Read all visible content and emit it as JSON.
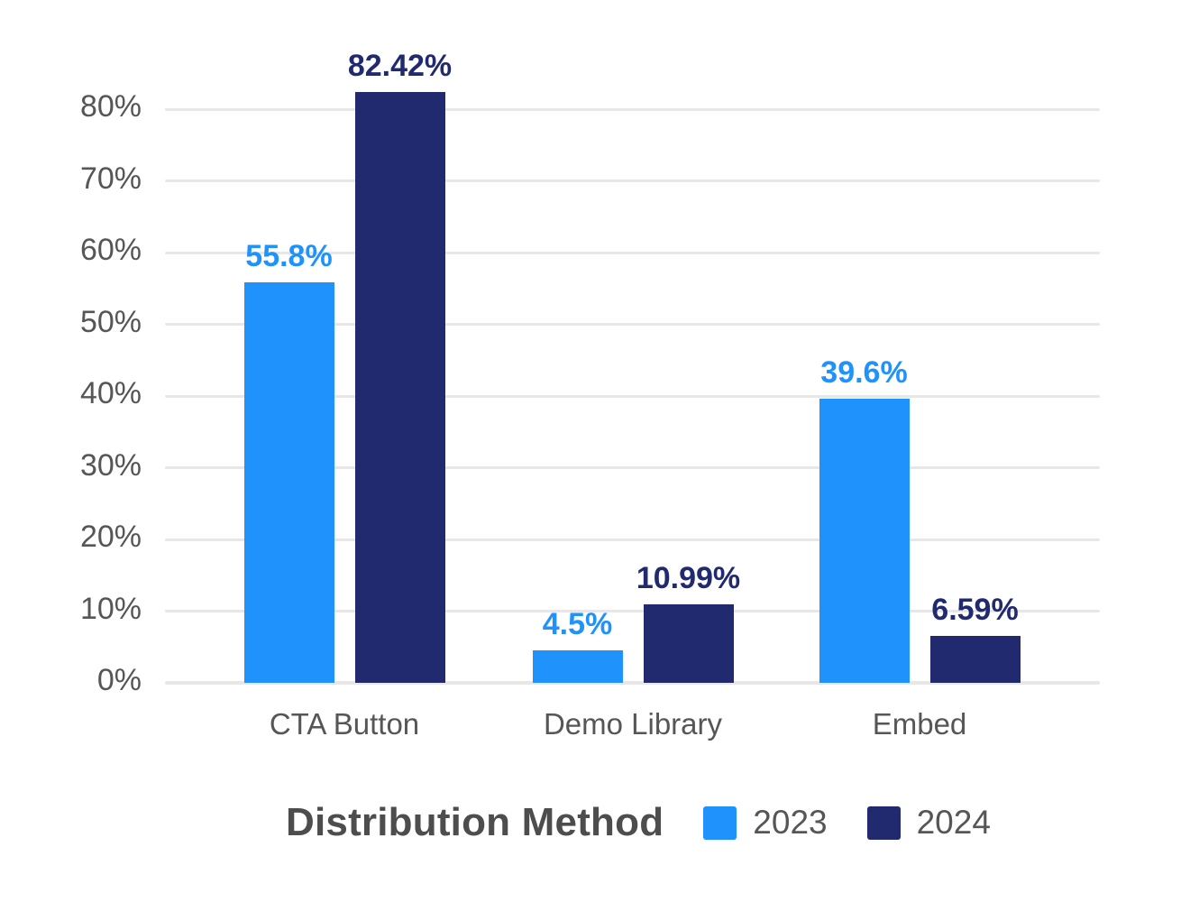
{
  "chart_data": {
    "type": "bar",
    "title": "",
    "xlabel": "Distribution Method",
    "ylabel": "",
    "categories": [
      "CTA Button",
      "Demo Library",
      "Embed"
    ],
    "series": [
      {
        "name": "2023",
        "color": "#2092FB",
        "values": [
          55.8,
          4.5,
          39.6
        ],
        "labels": [
          "55.8%",
          "4.5%",
          "39.6%"
        ]
      },
      {
        "name": "2024",
        "color": "#212A6E",
        "values": [
          82.42,
          10.99,
          6.59
        ],
        "labels": [
          "82.42%",
          "10.99%",
          "6.59%"
        ]
      }
    ],
    "yticks": [
      {
        "value": 0,
        "label": "0%"
      },
      {
        "value": 10,
        "label": "10%"
      },
      {
        "value": 20,
        "label": "20%"
      },
      {
        "value": 30,
        "label": "30%"
      },
      {
        "value": 40,
        "label": "40%"
      },
      {
        "value": 50,
        "label": "50%"
      },
      {
        "value": 60,
        "label": "60%"
      },
      {
        "value": 70,
        "label": "70%"
      },
      {
        "value": 80,
        "label": "80%"
      }
    ],
    "ylim": [
      0,
      85
    ],
    "grid": true,
    "legend_position": "bottom"
  },
  "colors": {
    "series_2023": "#2092FB",
    "series_2024": "#212A6E",
    "gridline": "#E7E7E7",
    "tick_text": "#565656",
    "category_text": "#565656",
    "legend_title_text": "#4D4D4D",
    "background": "#FFFFFF"
  }
}
